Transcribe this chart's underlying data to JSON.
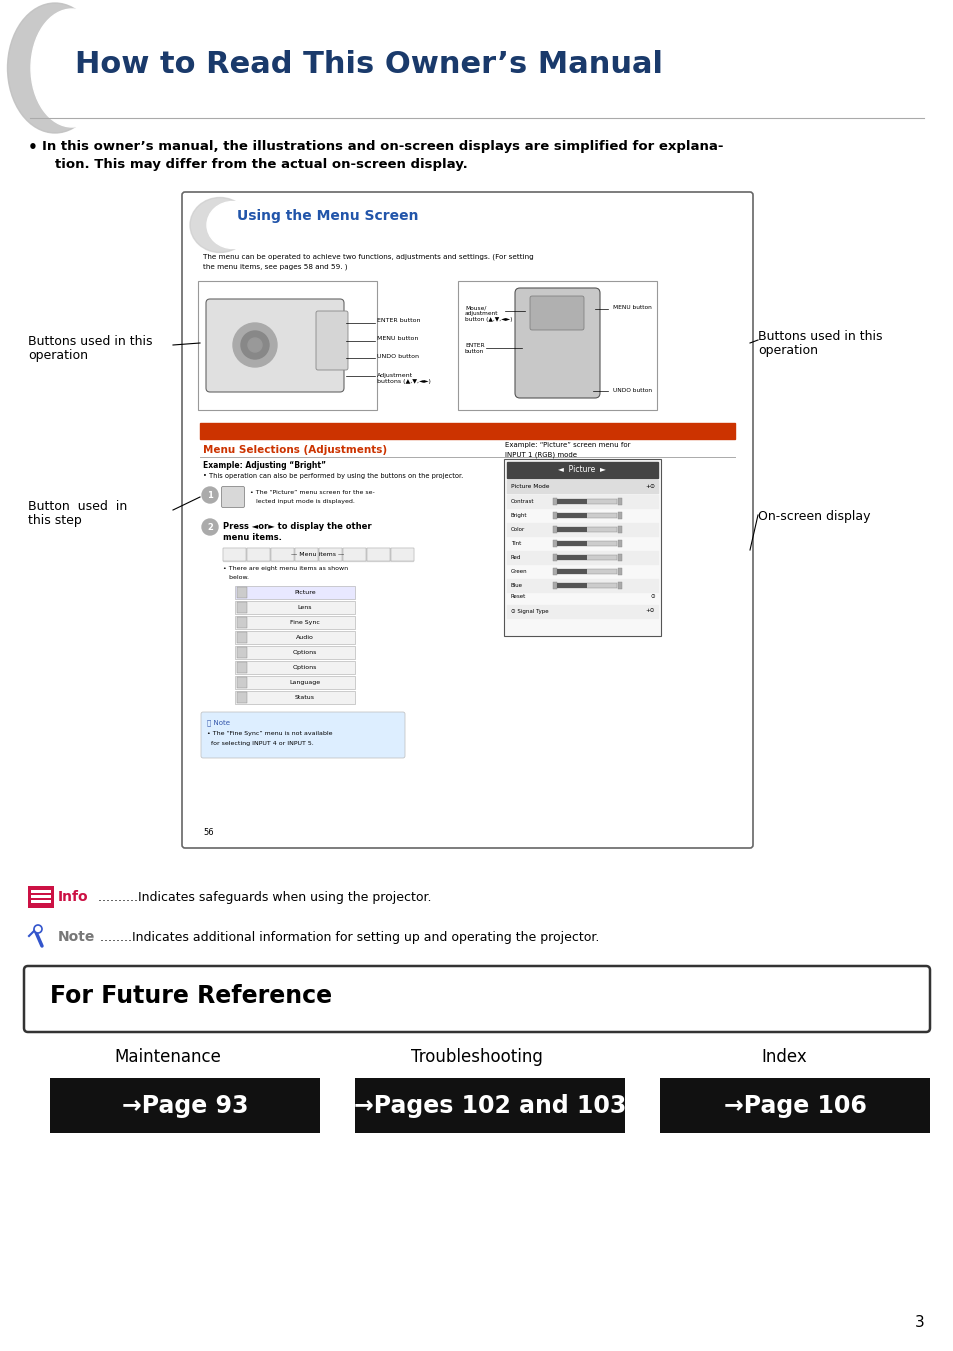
{
  "title": "How to Read This Owner’s Manual",
  "title_color": "#1a3a6b",
  "bg_color": "#ffffff",
  "info_text": "..........Indicates safeguards when using the projector.",
  "note_text": "........Indicates additional information for setting up and operating the projector.",
  "info_label": "Info",
  "note_label": "Note",
  "future_ref_title": "For Future Reference",
  "maintenance_label": "Maintenance",
  "troubleshooting_label": "Troubleshooting",
  "index_label": "Index",
  "page1_text": "→Page 93",
  "page2_text": "→Pages 102 and 103",
  "page3_text": "→Page 106",
  "box_label_left1": "Buttons used in this",
  "box_label_left2": "operation",
  "box_label_left3": "Button  used  in",
  "box_label_left4": "this step",
  "box_label_right1": "Buttons used in this",
  "box_label_right2": "operation",
  "box_label_right3": "On-screen display",
  "inner_title": "Using the Menu Screen",
  "inner_section": "Menu Selections (Adjustments)",
  "page_number": "3",
  "inner_small_text1": "The menu can be operated to achieve two functions, adjustments and settings. (For setting",
  "inner_small_text2": "the menu items, see pages 58 and 59. )",
  "example_text1": "Example: Adjusting “Bright”",
  "example_text2": "• This operation can also be performed by using the buttons on the projector.",
  "step2_text1": "Press ◄or► to display the other",
  "step2_text2": "menu items.",
  "menu_items": [
    "Picture",
    "Lens",
    "Fine Sync",
    "Audio",
    "Options",
    "Options",
    "Language",
    "Status"
  ],
  "display_rows": [
    "Picture Mode",
    "Contrast",
    "Bright",
    "Color",
    "Tint",
    "Red",
    "Green",
    "Blue",
    "Reset",
    "Signal Type"
  ],
  "note56_text1": "• The “Fine Sync” menu is not available",
  "note56_text2": "  for selecting INPUT 4 or INPUT 5.",
  "enter_button": "ENTER button",
  "menu_button": "MENU button",
  "undo_button": "UNDO button",
  "adj_buttons": "Adjustment\nbuttons (▲,▼,◄►)",
  "mouse_adj": "Mouse/\nadjustment\nbutton (▲,▼,◄►)",
  "remote_menu": "MENU button",
  "enter_btn2": "ENTER\nbutton",
  "undo_btn2": "UNDO button",
  "example_right1": "Example: “Picture” screen menu for",
  "example_right2": "INPUT 1 (RGB) mode",
  "step1_text1": "• The “Picture” menu screen for the se-",
  "step1_text2": "   lected input mode is displayed.",
  "menu_items_label": "— Menu items —",
  "there_are_text": "• There are eight menu items as shown",
  "below_text": "   below."
}
